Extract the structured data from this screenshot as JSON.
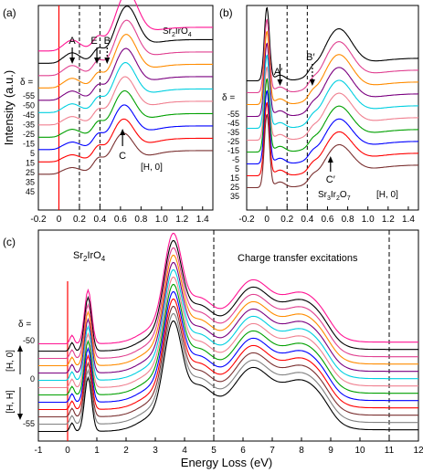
{
  "figure": {
    "ylabel": "Intensity (a.u.)",
    "xlabel": "Energy Loss (eV)"
  },
  "colors": {
    "spectra": [
      "#ff1493",
      "#000000",
      "#e04090",
      "#ff8c00",
      "#7b0080",
      "#00cfe0",
      "#f08090",
      "#00a000",
      "#0000ff",
      "#ff0000",
      "#7a3030",
      "#808080",
      "#000000"
    ],
    "elastic_line": "#ff0000",
    "dashed_line": "#000000"
  },
  "chart_data": [
    {
      "type": "line",
      "panel": "(a)",
      "material": "Sr2IrO4",
      "q_direction": "[H, 0]",
      "xlim": [
        -0.2,
        1.5
      ],
      "xticks": [
        "-0.2",
        "0",
        "0.2",
        "0.4",
        "0.6",
        "0.8",
        "1.0",
        "1.2",
        "1.4"
      ],
      "dashed_x": [
        0.2,
        0.4
      ],
      "elastic_x": 0,
      "delta_label": "δ =",
      "deltas": [
        "-55",
        "-50",
        "-45",
        "-35",
        "-25",
        "-15",
        "5",
        "15",
        "25",
        "35",
        "45"
      ],
      "delta_colors": [
        "#000",
        "#000",
        "#000",
        "#000",
        "#000",
        "#000",
        "#000",
        "#000",
        "#ff0000",
        "#000",
        "#000"
      ],
      "annotations": [
        {
          "text": "A",
          "x": 0.13,
          "arrow": "solid-down"
        },
        {
          "text": "E",
          "x": 0.37,
          "arrow": "solid-down"
        },
        {
          "text": "B",
          "x": 0.47,
          "arrow": "dotted-down"
        },
        {
          "text": "C",
          "x": 0.62,
          "arrow": "solid-up"
        }
      ],
      "series_offsets": [
        10,
        9,
        8,
        7,
        6,
        5,
        4,
        3,
        2,
        1,
        0
      ],
      "peak_x": 0.66
    },
    {
      "type": "line",
      "panel": "(b)",
      "material": "Sr3Ir2O7",
      "q_direction": "[H, 0]",
      "xlim": [
        -0.2,
        1.5
      ],
      "xticks": [
        "-0.2",
        "0",
        "0.2",
        "0.4",
        "0.6",
        "0.8",
        "1.0",
        "1.2",
        "1.4"
      ],
      "dashed_x": [
        0.2,
        0.4
      ],
      "elastic_x": 0,
      "delta_label": "δ =",
      "deltas": [
        "-55",
        "-45",
        "-35",
        "-25",
        "-15",
        "-5",
        "5",
        "15",
        "25",
        "35"
      ],
      "delta_colors": [
        "#000",
        "#000",
        "#000",
        "#000",
        "#000",
        "#000",
        "#000",
        "#000",
        "#ff0000",
        "#000"
      ],
      "annotations": [
        {
          "text": "A′",
          "x": 0.13,
          "arrow": "solid-down"
        },
        {
          "text": "B′",
          "x": 0.45,
          "arrow": "dotted-down"
        },
        {
          "text": "C′",
          "x": 0.63,
          "arrow": "solid-up"
        }
      ],
      "peak_x": 0.7
    },
    {
      "type": "line",
      "panel": "(c)",
      "material": "Sr2IrO4",
      "annotation": "Charge transfer excitations",
      "xlim": [
        -1,
        12
      ],
      "xticks": [
        "-1",
        "0",
        "1",
        "2",
        "3",
        "4",
        "5",
        "6",
        "7",
        "8",
        "9",
        "10",
        "11",
        "12"
      ],
      "dashed_x": [
        5,
        11
      ],
      "elastic_x": 0,
      "delta_label": "δ =",
      "delta_ticks": [
        "-50",
        "0",
        "-55"
      ],
      "dir_labels": [
        "[H, 0]",
        "[H, H]"
      ],
      "peaks_x": [
        0.7,
        3.6,
        6.3
      ]
    }
  ]
}
